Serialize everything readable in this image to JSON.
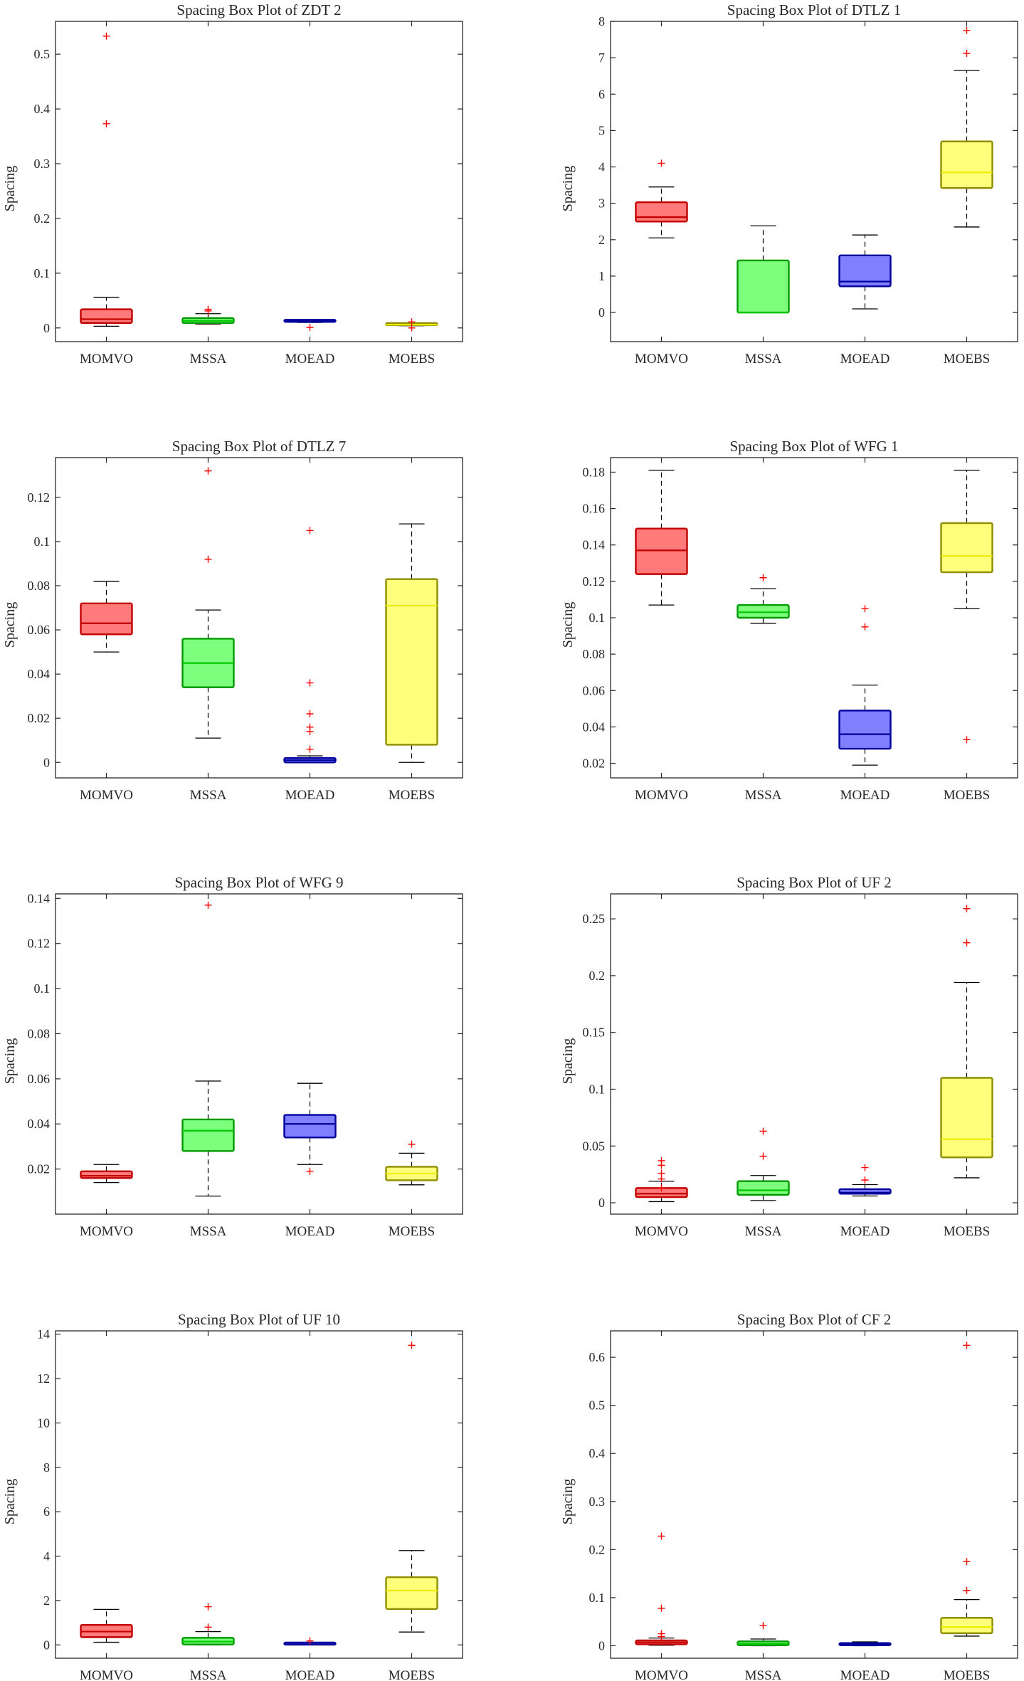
{
  "chart_data": [
    {
      "type": "box",
      "title": "Spacing Box Plot of ZDT 2",
      "ylabel": "Spacing",
      "ylim": [
        -0.025,
        0.56
      ],
      "yticks": [
        0,
        0.1,
        0.2,
        0.3,
        0.4,
        0.5
      ],
      "ytick_labels": [
        "0",
        "0.1",
        "0.2",
        "0.3",
        "0.4",
        "0.5"
      ],
      "categories": [
        "MOMVO",
        "MSSA",
        "MOEAD",
        "MOEBS"
      ],
      "boxes": [
        {
          "name": "MOMVO",
          "lower_whisker": 0.003,
          "q1": 0.009,
          "median": 0.016,
          "q3": 0.034,
          "upper_whisker": 0.056,
          "outliers": [
            0.373,
            0.533
          ]
        },
        {
          "name": "MSSA",
          "lower_whisker": 0.007,
          "q1": 0.009,
          "median": 0.013,
          "q3": 0.018,
          "upper_whisker": 0.026,
          "outliers": [
            0.031,
            0.034
          ]
        },
        {
          "name": "MOEAD",
          "lower_whisker": 0.01,
          "q1": 0.011,
          "median": 0.012,
          "q3": 0.014,
          "upper_whisker": 0.015,
          "outliers": [
            0.001
          ]
        },
        {
          "name": "MOEBS",
          "lower_whisker": 0.004,
          "q1": 0.005,
          "median": 0.006,
          "q3": 0.007,
          "upper_whisker": 0.008,
          "outliers": [
            0.0,
            0.011
          ]
        }
      ]
    },
    {
      "type": "box",
      "title": "Spacing Box Plot of DTLZ 1",
      "ylabel": "Spacing",
      "ylim": [
        -0.8,
        8.0
      ],
      "yticks": [
        0,
        1,
        2,
        3,
        4,
        5,
        6,
        7,
        8
      ],
      "ytick_labels": [
        "0",
        "1",
        "2",
        "3",
        "4",
        "5",
        "6",
        "7",
        "8"
      ],
      "categories": [
        "MOMVO",
        "MSSA",
        "MOEAD",
        "MOEBS"
      ],
      "boxes": [
        {
          "name": "MOMVO",
          "lower_whisker": 2.05,
          "q1": 2.5,
          "median": 2.62,
          "q3": 3.03,
          "upper_whisker": 3.45,
          "outliers": [
            4.1
          ]
        },
        {
          "name": "MSSA",
          "lower_whisker": 0.0,
          "q1": 0.0,
          "median": 0.0,
          "q3": 1.43,
          "upper_whisker": 2.38,
          "outliers": []
        },
        {
          "name": "MOEAD",
          "lower_whisker": 0.1,
          "q1": 0.72,
          "median": 0.85,
          "q3": 1.57,
          "upper_whisker": 2.13,
          "outliers": []
        },
        {
          "name": "MOEBS",
          "lower_whisker": 2.35,
          "q1": 3.42,
          "median": 3.85,
          "q3": 4.7,
          "upper_whisker": 6.65,
          "outliers": [
            7.12,
            7.75
          ]
        }
      ]
    },
    {
      "type": "box",
      "title": "Spacing Box Plot of DTLZ 7",
      "ylabel": "Spacing",
      "ylim": [
        -0.007,
        0.138
      ],
      "yticks": [
        0,
        0.02,
        0.04,
        0.06,
        0.08,
        0.1,
        0.12
      ],
      "ytick_labels": [
        "0",
        "0.02",
        "0.04",
        "0.06",
        "0.08",
        "0.1",
        "0.12"
      ],
      "categories": [
        "MOMVO",
        "MSSA",
        "MOEAD",
        "MOEBS"
      ],
      "boxes": [
        {
          "name": "MOMVO",
          "lower_whisker": 0.05,
          "q1": 0.058,
          "median": 0.063,
          "q3": 0.072,
          "upper_whisker": 0.082,
          "outliers": []
        },
        {
          "name": "MSSA",
          "lower_whisker": 0.011,
          "q1": 0.034,
          "median": 0.045,
          "q3": 0.056,
          "upper_whisker": 0.069,
          "outliers": [
            0.092,
            0.132
          ]
        },
        {
          "name": "MOEAD",
          "lower_whisker": 0.0,
          "q1": 0.0,
          "median": 0.001,
          "q3": 0.002,
          "upper_whisker": 0.003,
          "outliers": [
            0.006,
            0.014,
            0.016,
            0.022,
            0.036,
            0.105
          ]
        },
        {
          "name": "MOEBS",
          "lower_whisker": 0.0,
          "q1": 0.008,
          "median": 0.071,
          "q3": 0.083,
          "upper_whisker": 0.108,
          "outliers": []
        }
      ]
    },
    {
      "type": "box",
      "title": "Spacing Box Plot of WFG 1",
      "ylabel": "Spacing",
      "ylim": [
        0.012,
        0.188
      ],
      "yticks": [
        0.02,
        0.04,
        0.06,
        0.08,
        0.1,
        0.12,
        0.14,
        0.16,
        0.18
      ],
      "ytick_labels": [
        "0.02",
        "0.04",
        "0.06",
        "0.08",
        "0.1",
        "0.12",
        "0.14",
        "0.16",
        "0.18"
      ],
      "categories": [
        "MOMVO",
        "MSSA",
        "MOEAD",
        "MOEBS"
      ],
      "boxes": [
        {
          "name": "MOMVO",
          "lower_whisker": 0.107,
          "q1": 0.124,
          "median": 0.137,
          "q3": 0.149,
          "upper_whisker": 0.181,
          "outliers": []
        },
        {
          "name": "MSSA",
          "lower_whisker": 0.097,
          "q1": 0.1,
          "median": 0.103,
          "q3": 0.107,
          "upper_whisker": 0.116,
          "outliers": [
            0.122
          ]
        },
        {
          "name": "MOEAD",
          "lower_whisker": 0.019,
          "q1": 0.028,
          "median": 0.036,
          "q3": 0.049,
          "upper_whisker": 0.063,
          "outliers": [
            0.095,
            0.105
          ]
        },
        {
          "name": "MOEBS",
          "lower_whisker": 0.105,
          "q1": 0.125,
          "median": 0.134,
          "q3": 0.152,
          "upper_whisker": 0.181,
          "outliers": [
            0.033
          ]
        }
      ]
    },
    {
      "type": "box",
      "title": "Spacing Box Plot of WFG 9",
      "ylabel": "Spacing",
      "ylim": [
        0.0,
        0.142
      ],
      "yticks": [
        0.02,
        0.04,
        0.06,
        0.08,
        0.1,
        0.12,
        0.14
      ],
      "ytick_labels": [
        "0.02",
        "0.04",
        "0.06",
        "0.08",
        "0.1",
        "0.12",
        "0.14"
      ],
      "categories": [
        "MOMVO",
        "MSSA",
        "MOEAD",
        "MOEBS"
      ],
      "boxes": [
        {
          "name": "MOMVO",
          "lower_whisker": 0.014,
          "q1": 0.016,
          "median": 0.017,
          "q3": 0.019,
          "upper_whisker": 0.022,
          "outliers": []
        },
        {
          "name": "MSSA",
          "lower_whisker": 0.008,
          "q1": 0.028,
          "median": 0.037,
          "q3": 0.042,
          "upper_whisker": 0.059,
          "outliers": [
            0.137
          ]
        },
        {
          "name": "MOEAD",
          "lower_whisker": 0.022,
          "q1": 0.034,
          "median": 0.04,
          "q3": 0.044,
          "upper_whisker": 0.058,
          "outliers": [
            0.019
          ]
        },
        {
          "name": "MOEBS",
          "lower_whisker": 0.013,
          "q1": 0.015,
          "median": 0.018,
          "q3": 0.021,
          "upper_whisker": 0.027,
          "outliers": [
            0.031
          ]
        }
      ]
    },
    {
      "type": "box",
      "title": "Spacing Box Plot of UF 2",
      "ylabel": "Spacing",
      "ylim": [
        -0.01,
        0.272
      ],
      "yticks": [
        0,
        0.05,
        0.1,
        0.15,
        0.2,
        0.25
      ],
      "ytick_labels": [
        "0",
        "0.05",
        "0.1",
        "0.15",
        "0.2",
        "0.25"
      ],
      "categories": [
        "MOMVO",
        "MSSA",
        "MOEAD",
        "MOEBS"
      ],
      "boxes": [
        {
          "name": "MOMVO",
          "lower_whisker": 0.001,
          "q1": 0.005,
          "median": 0.008,
          "q3": 0.013,
          "upper_whisker": 0.019,
          "outliers": [
            0.013,
            0.021,
            0.026,
            0.033,
            0.037
          ]
        },
        {
          "name": "MSSA",
          "lower_whisker": 0.002,
          "q1": 0.007,
          "median": 0.011,
          "q3": 0.019,
          "upper_whisker": 0.024,
          "outliers": [
            0.041,
            0.063
          ]
        },
        {
          "name": "MOEAD",
          "lower_whisker": 0.006,
          "q1": 0.008,
          "median": 0.009,
          "q3": 0.012,
          "upper_whisker": 0.016,
          "outliers": [
            0.02,
            0.031
          ]
        },
        {
          "name": "MOEBS",
          "lower_whisker": 0.022,
          "q1": 0.04,
          "median": 0.056,
          "q3": 0.11,
          "upper_whisker": 0.194,
          "outliers": [
            0.229,
            0.259
          ]
        }
      ]
    },
    {
      "type": "box",
      "title": "Spacing Box Plot of UF 10",
      "ylabel": "Spacing",
      "ylim": [
        -0.6,
        14.15
      ],
      "yticks": [
        0,
        2,
        4,
        6,
        8,
        10,
        12,
        14
      ],
      "ytick_labels": [
        "0",
        "2",
        "4",
        "6",
        "8",
        "10",
        "12",
        "14"
      ],
      "categories": [
        "MOMVO",
        "MSSA",
        "MOEAD",
        "MOEBS"
      ],
      "boxes": [
        {
          "name": "MOMVO",
          "lower_whisker": 0.12,
          "q1": 0.35,
          "median": 0.6,
          "q3": 0.9,
          "upper_whisker": 1.6,
          "outliers": []
        },
        {
          "name": "MSSA",
          "lower_whisker": 0.0,
          "q1": 0.02,
          "median": 0.15,
          "q3": 0.32,
          "upper_whisker": 0.6,
          "outliers": [
            0.8,
            1.72
          ]
        },
        {
          "name": "MOEAD",
          "lower_whisker": 0.0,
          "q1": 0.01,
          "median": 0.03,
          "q3": 0.05,
          "upper_whisker": 0.07,
          "outliers": [
            0.18
          ]
        },
        {
          "name": "MOEBS",
          "lower_whisker": 0.58,
          "q1": 1.62,
          "median": 2.45,
          "q3": 3.05,
          "upper_whisker": 4.25,
          "outliers": [
            13.5
          ]
        }
      ]
    },
    {
      "type": "box",
      "title": "Spacing Box Plot of CF 2",
      "ylabel": "Spacing",
      "ylim": [
        -0.026,
        0.655
      ],
      "yticks": [
        0,
        0.1,
        0.2,
        0.3,
        0.4,
        0.5,
        0.6
      ],
      "ytick_labels": [
        "0",
        "0.1",
        "0.2",
        "0.3",
        "0.4",
        "0.5",
        "0.6"
      ],
      "categories": [
        "MOMVO",
        "MSSA",
        "MOEAD",
        "MOEBS"
      ],
      "boxes": [
        {
          "name": "MOMVO",
          "lower_whisker": 0.001,
          "q1": 0.003,
          "median": 0.007,
          "q3": 0.011,
          "upper_whisker": 0.016,
          "outliers": [
            0.019,
            0.025,
            0.078,
            0.228
          ]
        },
        {
          "name": "MSSA",
          "lower_whisker": 0.0,
          "q1": 0.001,
          "median": 0.004,
          "q3": 0.009,
          "upper_whisker": 0.014,
          "outliers": [
            0.042
          ]
        },
        {
          "name": "MOEAD",
          "lower_whisker": 0.0,
          "q1": 0.001,
          "median": 0.003,
          "q3": 0.005,
          "upper_whisker": 0.008,
          "outliers": []
        },
        {
          "name": "MOEBS",
          "lower_whisker": 0.02,
          "q1": 0.026,
          "median": 0.039,
          "q3": 0.058,
          "upper_whisker": 0.096,
          "outliers": [
            0.115,
            0.175,
            0.625
          ]
        }
      ]
    }
  ],
  "series_colors": {
    "MOMVO": {
      "fill": "#ff7b7b",
      "stroke": "#c30000",
      "median": "#c30000"
    },
    "MSSA": {
      "fill": "#7dff7d",
      "stroke": "#009a00",
      "median": "#00c800"
    },
    "MOEAD": {
      "fill": "#8080ff",
      "stroke": "#00009c",
      "median": "#00009c"
    },
    "MOEBS": {
      "fill": "#ffff7b",
      "stroke": "#8e8e00",
      "median": "#eded00"
    }
  },
  "outlier_color": "#ff0000",
  "whisker_color": "#000000"
}
